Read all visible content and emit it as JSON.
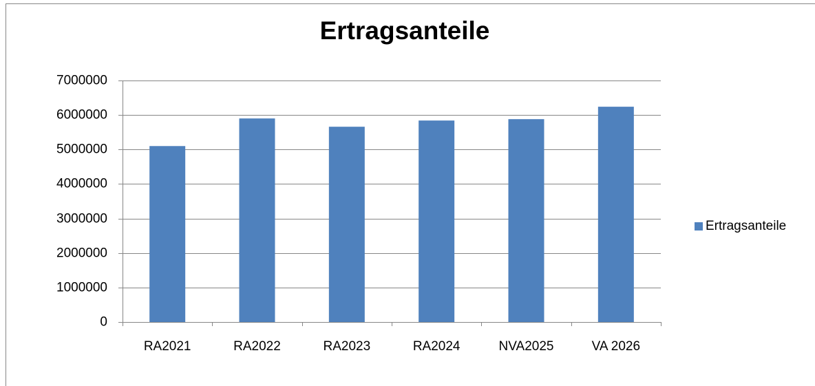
{
  "chart_data": {
    "type": "bar",
    "title": "Ertragsanteile",
    "categories": [
      "RA2021",
      "RA2022",
      "RA2023",
      "RA2024",
      "NVA2025",
      "VA 2026"
    ],
    "series": [
      {
        "name": "Ertragsanteile",
        "color": "#4f81bd",
        "values": [
          5100000,
          5900000,
          5660000,
          5840000,
          5880000,
          6240000
        ]
      }
    ],
    "ylim": [
      0,
      7000000
    ],
    "yticks": [
      0,
      1000000,
      2000000,
      3000000,
      4000000,
      5000000,
      6000000,
      7000000
    ],
    "grid": true,
    "legend": "right"
  }
}
